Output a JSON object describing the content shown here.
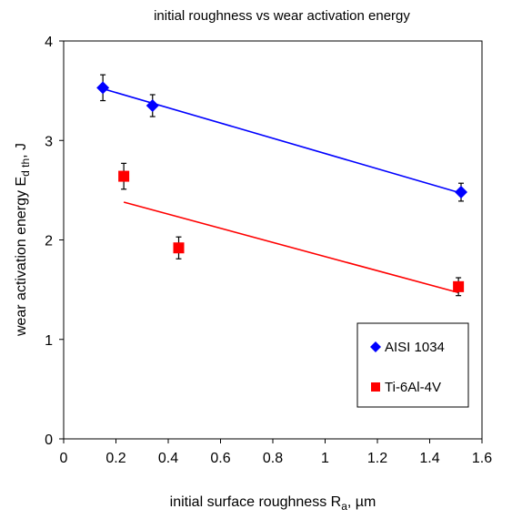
{
  "chart_data": {
    "type": "scatter",
    "title": "initial roughness vs wear activation energy",
    "xlabel": {
      "main": "initial surface roughness R",
      "sub": "a",
      "rest": ", µm"
    },
    "ylabel": {
      "main": "wear activation energy E",
      "sub": "d th",
      "rest": ", J"
    },
    "xlim": [
      0,
      1.6
    ],
    "ylim": [
      0,
      4
    ],
    "x_ticks": [
      "0",
      "0.2",
      "0.4",
      "0.6",
      "0.8",
      "1",
      "1.2",
      "1.4",
      "1.6"
    ],
    "y_ticks": [
      "0",
      "1",
      "2",
      "3",
      "4"
    ],
    "grid": false,
    "legend_position": "lower-right",
    "series": [
      {
        "name": "AISI 1034",
        "marker": "diamond",
        "color": "#0000ff",
        "trend_color": "#0000ff",
        "points": [
          {
            "x": 0.15,
            "y": 3.53,
            "err": 0.13
          },
          {
            "x": 0.34,
            "y": 3.35,
            "err": 0.11
          },
          {
            "x": 1.52,
            "y": 2.48,
            "err": 0.09
          }
        ],
        "trend": {
          "x": [
            0.15,
            1.52
          ],
          "y": [
            3.52,
            2.47
          ]
        }
      },
      {
        "name": "Ti-6Al-4V",
        "marker": "square",
        "color": "#ff0000",
        "trend_color": "#ff0000",
        "points": [
          {
            "x": 0.23,
            "y": 2.64,
            "err": 0.13
          },
          {
            "x": 0.44,
            "y": 1.92,
            "err": 0.11
          },
          {
            "x": 1.51,
            "y": 1.53,
            "err": 0.09
          }
        ],
        "trend": {
          "x": [
            0.23,
            1.51
          ],
          "y": [
            2.38,
            1.47
          ]
        }
      }
    ]
  }
}
